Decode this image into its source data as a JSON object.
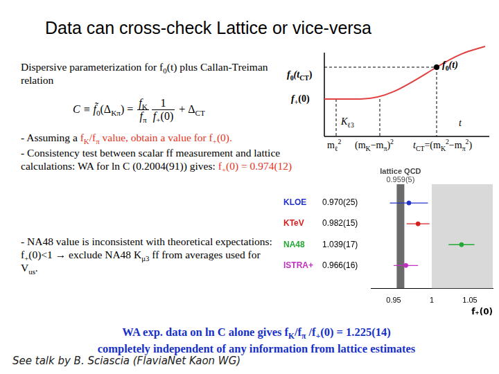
{
  "title": "Data can cross-check Lattice or vice-versa",
  "paragraph": [
    {
      "text": "Dispersive parameterization for f"
    },
    {
      "text": "0",
      "sub": true
    },
    {
      "text": "(t) plus Callan-Treiman relation"
    }
  ],
  "formula": [
    {
      "text": "C ≡ f̃",
      "italic": true
    },
    {
      "text": "0",
      "sub": true
    },
    {
      "text": "(Δ"
    },
    {
      "text": "Kπ",
      "sub": true
    },
    {
      "text": ") = "
    },
    {
      "frac": {
        "num": [
          {
            "text": "f",
            "italic": true
          },
          {
            "text": "K",
            "sub": true
          }
        ],
        "den": [
          {
            "text": "f",
            "italic": true
          },
          {
            "text": "π",
            "sub": true
          }
        ]
      }
    },
    {
      "frac": {
        "num": [
          {
            "text": "1"
          }
        ],
        "den": [
          {
            "text": "f",
            "italic": true
          },
          {
            "text": "+",
            "sub": true
          },
          {
            "text": "(0)"
          }
        ]
      }
    },
    {
      "text": " + Δ"
    },
    {
      "text": "CT",
      "sub": true
    }
  ],
  "bullets": [
    [
      {
        "text": "- Assuming a "
      },
      {
        "text": "f",
        "color": "#e4341c"
      },
      {
        "text": "K",
        "sub": true,
        "color": "#e4341c"
      },
      {
        "text": "/f",
        "color": "#e4341c"
      },
      {
        "text": "π",
        "sub": true,
        "color": "#e4341c"
      },
      {
        "text": " value, obtain a value for f",
        "color": "#e4341c"
      },
      {
        "text": "+",
        "sub": true,
        "color": "#e4341c"
      },
      {
        "text": "(0).",
        "color": "#e4341c"
      }
    ],
    [
      {
        "text": "- Consistency test between scalar ff measurement and lattice calculations: WA for ln C (0.2004(91)) gives: "
      },
      {
        "text": "f",
        "color": "#e4341c"
      },
      {
        "text": "+",
        "sub": true,
        "color": "#e4341c"
      },
      {
        "text": "(0) = 0.974(12)",
        "color": "#e4341c"
      }
    ],
    [
      {
        "text": "- NA48 value is inconsistent with theoretical expectations: f"
      },
      {
        "text": "+",
        "sub": true
      },
      {
        "text": "(0)<1 → exclude NA48 K"
      },
      {
        "text": "μ3",
        "sub": true
      },
      {
        "text": " ff from averages used for V"
      },
      {
        "text": "us",
        "sub": true
      },
      {
        "text": "."
      }
    ]
  ],
  "conclusion": [
    [
      {
        "text": "WA exp. data on ln C alone gives f"
      },
      {
        "text": "K",
        "sub": true
      },
      {
        "text": "/f"
      },
      {
        "text": "π",
        "sub": true
      },
      {
        "text": " /f"
      },
      {
        "text": "+",
        "sub": true
      },
      {
        "text": "(0) = 1.225(14)"
      }
    ],
    [
      {
        "text": "completely independent of any information from lattice estimates"
      }
    ]
  ],
  "footer": "See talk by B. Sciascia (FlaviaNet Kaon WG)",
  "diagram": {
    "labels": [
      [
        {
          "text": "f",
          "italic": true,
          "bold": true
        },
        {
          "text": "0",
          "sub": true,
          "bold": true
        },
        {
          "text": "(t",
          "italic": true,
          "bold": true
        },
        {
          "text": "CT",
          "sub": true,
          "bold": true
        },
        {
          "text": ")",
          "bold": true
        }
      ],
      [
        {
          "text": "f",
          "italic": true,
          "bold": true
        },
        {
          "text": "+",
          "sub": true,
          "bold": true
        },
        {
          "text": "(0)",
          "bold": true
        }
      ],
      [
        {
          "text": "f",
          "italic": true,
          "bold": true
        },
        {
          "text": "0",
          "sub": true,
          "bold": true
        },
        {
          "text": "(t)",
          "italic": true,
          "bold": true
        }
      ],
      [
        {
          "text": "K",
          "italic": true
        },
        {
          "text": "ℓ3",
          "sub": true
        }
      ],
      [
        {
          "text": "t",
          "italic": true
        }
      ],
      [
        {
          "text": "m"
        },
        {
          "text": "ℓ",
          "sub": true
        },
        {
          "text": "2",
          "sup": true
        }
      ],
      [
        {
          "text": "(m"
        },
        {
          "text": "K",
          "sub": true
        },
        {
          "text": "−m"
        },
        {
          "text": "π",
          "sub": true
        },
        {
          "text": ")"
        },
        {
          "text": "2",
          "sup": true
        }
      ],
      [
        {
          "text": "t",
          "italic": true
        },
        {
          "text": "CT",
          "sub": true
        },
        {
          "text": "=(m"
        },
        {
          "text": "K",
          "sub": true
        },
        {
          "text": "2",
          "sup": true
        },
        {
          "text": "−m"
        },
        {
          "text": "π",
          "sub": true
        },
        {
          "text": "2",
          "sup": true
        },
        {
          "text": ")"
        }
      ]
    ]
  },
  "chart_data": {
    "type": "scatter",
    "x_label": "f₊(0)",
    "categories": [
      "KLOE",
      "KTeV",
      "NA48",
      "ISTRA+"
    ],
    "values": [
      0.97,
      0.982,
      1.039,
      0.966
    ],
    "errors": [
      0.025,
      0.015,
      0.017,
      0.016
    ],
    "value_labels": [
      "0.970(25)",
      "0.982(15)",
      "1.039(17)",
      "0.966(16)"
    ],
    "colors": [
      "#2233cc",
      "#d42020",
      "#22aa33",
      "#c030c0"
    ],
    "reference": {
      "label": "lattice QCD",
      "value": 0.959,
      "error": 0.005,
      "value_label": "0.959(5)"
    },
    "shaded_from": 1,
    "xlim": [
      0.92,
      1.08
    ],
    "xticks": [
      0.95,
      1,
      1.05
    ],
    "grid": false,
    "tick_labels": "x"
  }
}
